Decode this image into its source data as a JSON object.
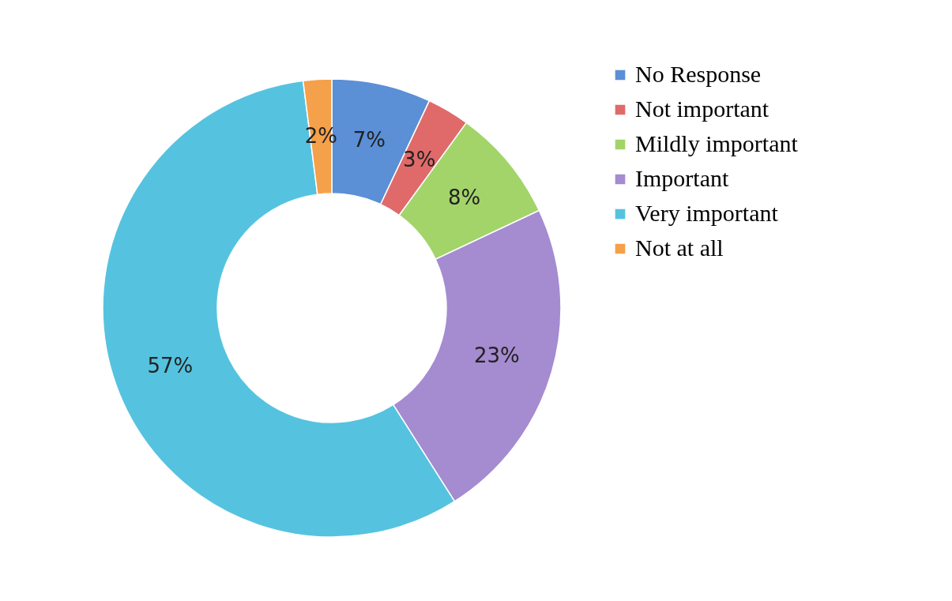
{
  "chart_data": {
    "type": "donut",
    "categories": [
      "No Response",
      "Not important",
      "Mildly important",
      "Important",
      "Very important",
      "Not at all"
    ],
    "values": [
      7,
      3,
      8,
      23,
      57,
      2
    ],
    "colors": [
      "#5b8fd6",
      "#e06a6a",
      "#a3d46a",
      "#a58bd0",
      "#55c3df",
      "#f5a04a"
    ],
    "value_labels": [
      "7%",
      "3%",
      "8%",
      "23%",
      "57%",
      "2%"
    ],
    "legend": "right"
  }
}
